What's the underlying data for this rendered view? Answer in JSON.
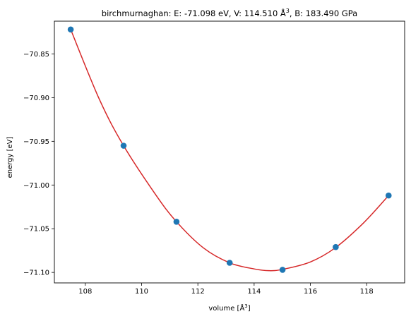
{
  "chart_data": {
    "type": "scatter",
    "title": "birchmurnaghan: E: -71.098 eV, V: 114.510 Å",
    "title_sup": "3",
    "title_tail": ", B: 183.490 GPa",
    "xlabel": "volume [Å",
    "xlabel_sup": "3",
    "xlabel_tail": "]",
    "ylabel": "energy [eV]",
    "xlim": [
      106.9,
      119.35
    ],
    "ylim": [
      -71.112,
      -70.8125
    ],
    "xticks": [
      108,
      110,
      112,
      114,
      116,
      118
    ],
    "xtick_labels": [
      "108",
      "110",
      "112",
      "114",
      "116",
      "118"
    ],
    "yticks": [
      -70.85,
      -70.9,
      -70.95,
      -71.0,
      -71.05,
      -71.1
    ],
    "ytick_labels": [
      "−70.85",
      "−70.90",
      "−70.95",
      "−71.00",
      "−71.05",
      "−71.10"
    ],
    "series": [
      {
        "kind": "points",
        "color": "#1f77b4",
        "x": [
          107.48,
          109.36,
          111.24,
          113.13,
          115.01,
          116.9,
          118.78
        ],
        "y": [
          -70.822,
          -70.955,
          -71.042,
          -71.089,
          -71.097,
          -71.071,
          -71.012
        ]
      },
      {
        "kind": "fit-curve",
        "color": "#d62728",
        "x": [
          107.48,
          108.5,
          109.36,
          110.5,
          111.24,
          112.2,
          113.13,
          114.0,
          114.51,
          115.01,
          116.0,
          116.9,
          117.9,
          118.78
        ],
        "y": [
          -70.822,
          -70.902,
          -70.955,
          -71.011,
          -71.042,
          -71.072,
          -71.089,
          -71.096,
          -71.098,
          -71.0965,
          -71.088,
          -71.0715,
          -71.043,
          -71.012
        ]
      }
    ],
    "grid": false,
    "legend": "none"
  }
}
